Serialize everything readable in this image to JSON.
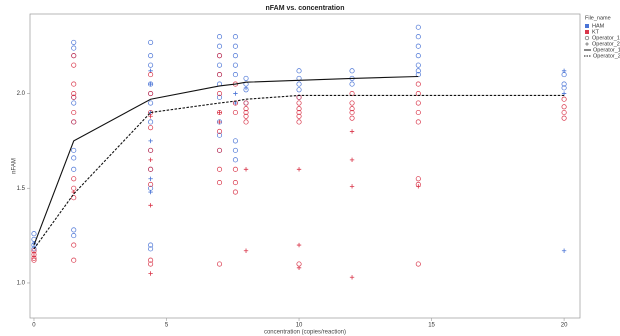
{
  "chart_data": {
    "type": "scatter",
    "title": "nFAM vs. concentration",
    "x_label": "concentration (copies/reaction)",
    "y_label": "nFAM",
    "xlim": [
      -0.15,
      20.6
    ],
    "ylim": [
      0.815,
      2.42
    ],
    "xticks": [
      0,
      5,
      10,
      15,
      20
    ],
    "yticks": [
      {
        "value": 1,
        "label": "1.0"
      },
      {
        "value": 1.5,
        "label": "1.5"
      },
      {
        "value": 2,
        "label": "2.0"
      }
    ],
    "grid": false,
    "legend": {
      "title": "File_name",
      "colors": [
        {
          "name": "HAM",
          "color": "#4a74d6"
        },
        {
          "name": "KT",
          "color": "#d9364a"
        }
      ],
      "markers": [
        {
          "name": "Operator_1",
          "marker": "circle"
        },
        {
          "name": "Operator_2",
          "marker": "plus"
        }
      ]
    },
    "series": [
      {
        "file": "HAM",
        "name": "Operator_1",
        "x": [
          0,
          0,
          0,
          0,
          1.5,
          1.5,
          1.5,
          1.5,
          1.5,
          1.5,
          1.5,
          1.5,
          1.5,
          1.5,
          1.5,
          4.4,
          4.4,
          4.4,
          4.4,
          4.4,
          4.4,
          4.4,
          4.4,
          4.4,
          4.4,
          4.4,
          4.4,
          7,
          7,
          7,
          7,
          7,
          7,
          7,
          7,
          7,
          7,
          7.6,
          7.6,
          7.6,
          7.6,
          7.6,
          7.6,
          7.6,
          7.6,
          8,
          8,
          8,
          8,
          10,
          10,
          10,
          10,
          10,
          12,
          12,
          12,
          14.5,
          14.5,
          14.5,
          14.5,
          14.5,
          14.5,
          14.5,
          20,
          20,
          20
        ],
        "values": [
          1.26,
          1.23,
          1.2,
          1.18,
          2.27,
          2.24,
          2.2,
          1.98,
          1.95,
          1.85,
          1.7,
          1.66,
          1.6,
          1.28,
          1.25,
          2.27,
          2.2,
          2.15,
          2.05,
          2.0,
          1.95,
          1.85,
          1.7,
          1.6,
          1.5,
          1.2,
          1.18,
          2.3,
          2.25,
          2.2,
          2.15,
          2.1,
          2.05,
          1.98,
          1.85,
          1.78,
          1.7,
          2.3,
          2.25,
          2.2,
          2.15,
          2.1,
          1.75,
          1.7,
          1.65,
          2.08,
          2.05,
          2.02,
          1.95,
          2.12,
          2.08,
          2.05,
          2.02,
          1.98,
          2.12,
          2.08,
          2.05,
          2.35,
          2.3,
          2.25,
          2.2,
          2.15,
          2.12,
          2.1,
          2.1,
          2.05,
          2.03
        ]
      },
      {
        "file": "HAM",
        "name": "Operator_2",
        "x": [
          0,
          0,
          4.4,
          4.4,
          4.4,
          4.4,
          4.4,
          4.4,
          7.6,
          7.6,
          8,
          20,
          20,
          20
        ],
        "values": [
          1.21,
          1.19,
          2.12,
          2.05,
          1.9,
          1.75,
          1.55,
          1.48,
          2.0,
          1.95,
          2.03,
          2.12,
          2.0,
          1.17
        ]
      },
      {
        "file": "KT",
        "name": "Operator_1",
        "x": [
          0,
          0,
          0,
          0,
          1.5,
          1.5,
          1.5,
          1.5,
          1.5,
          1.5,
          1.5,
          1.5,
          1.5,
          1.5,
          1.5,
          1.5,
          4.4,
          4.4,
          4.4,
          4.4,
          4.4,
          4.4,
          4.4,
          4.4,
          4.4,
          7,
          7,
          7,
          7,
          7,
          7,
          7,
          7,
          7,
          7.6,
          7.6,
          7.6,
          7.6,
          7.6,
          7.6,
          8,
          8,
          8,
          8,
          8,
          10,
          10,
          10,
          10,
          10,
          10,
          10,
          12,
          12,
          12,
          12,
          12,
          14.5,
          14.5,
          14.5,
          14.5,
          14.5,
          14.5,
          14.5,
          14.5,
          20,
          20,
          20,
          20
        ],
        "values": [
          1.17,
          1.15,
          1.13,
          1.12,
          2.2,
          2.15,
          2.05,
          2.0,
          1.98,
          1.9,
          1.85,
          1.55,
          1.5,
          1.45,
          1.2,
          1.12,
          2.1,
          2.0,
          1.9,
          1.82,
          1.7,
          1.6,
          1.52,
          1.12,
          1.1,
          2.2,
          2.1,
          2.0,
          1.9,
          1.8,
          1.7,
          1.6,
          1.53,
          1.1,
          2.05,
          1.95,
          1.9,
          1.6,
          1.53,
          1.48,
          1.95,
          1.92,
          1.9,
          1.88,
          1.85,
          1.98,
          1.95,
          1.92,
          1.9,
          1.88,
          1.85,
          1.1,
          2.0,
          1.95,
          1.92,
          1.9,
          1.87,
          2.05,
          2.0,
          1.95,
          1.9,
          1.85,
          1.55,
          1.52,
          1.1,
          1.97,
          1.93,
          1.9,
          1.87
        ]
      },
      {
        "file": "KT",
        "name": "Operator_2",
        "x": [
          0,
          0,
          1.5,
          4.4,
          4.4,
          4.4,
          4.4,
          7,
          7,
          8,
          8,
          10,
          10,
          10,
          12,
          12,
          12,
          12,
          14.5
        ],
        "values": [
          1.16,
          1.14,
          1.48,
          1.88,
          1.65,
          1.41,
          1.05,
          1.9,
          1.85,
          1.6,
          1.17,
          1.6,
          1.2,
          1.08,
          1.8,
          1.65,
          1.51,
          1.03,
          1.51
        ]
      }
    ],
    "fits": [
      {
        "name": "Operator_1",
        "style": "solid",
        "x": [
          0,
          1.5,
          4.4,
          7,
          7.6,
          8,
          10,
          12,
          14.5
        ],
        "values": [
          1.2,
          1.75,
          1.97,
          2.04,
          2.05,
          2.06,
          2.07,
          2.08,
          2.09
        ]
      },
      {
        "name": "Operator_2",
        "style": "dashed",
        "x": [
          0,
          1.5,
          4.4,
          7,
          7.6,
          8,
          10,
          12,
          14.5,
          20
        ],
        "values": [
          1.18,
          1.47,
          1.9,
          1.95,
          1.96,
          1.97,
          1.99,
          1.99,
          1.99,
          1.99
        ]
      }
    ]
  }
}
